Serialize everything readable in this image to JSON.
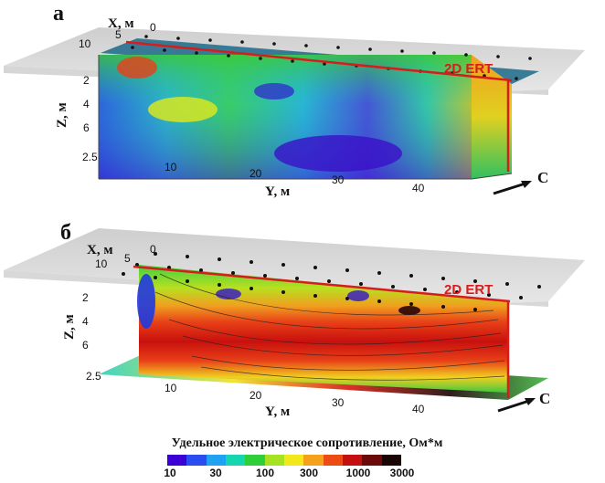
{
  "panels": [
    {
      "letter": "а",
      "x_axis_label": "X, м",
      "x_ticks": [
        "0",
        "5",
        "10"
      ],
      "z_axis_label": "Z, м",
      "z_ticks": [
        "2",
        "4",
        "6"
      ],
      "z_bottom_tick": "2.5",
      "y_axis_label": "Y, м",
      "y_ticks": [
        "10",
        "20",
        "30",
        "40"
      ],
      "profile_label": "2D ERT",
      "direction_label": "C"
    },
    {
      "letter": "б",
      "x_axis_label": "X, м",
      "x_ticks": [
        "0",
        "5",
        "10"
      ],
      "z_axis_label": "Z, м",
      "z_ticks": [
        "2",
        "4",
        "6"
      ],
      "z_bottom_tick": "2.5",
      "y_axis_label": "Y, м",
      "y_ticks": [
        "10",
        "20",
        "30",
        "40"
      ],
      "profile_label": "2D ERT",
      "direction_label": "C"
    }
  ],
  "legend": {
    "title": "Удельное электрическое сопротивление, Ом*м",
    "ticks": [
      "10",
      "30",
      "100",
      "300",
      "1000",
      "3000"
    ],
    "colors": [
      "#3a00d6",
      "#2a4cf0",
      "#1fa2f2",
      "#16d6b0",
      "#2fcf3a",
      "#a6e21f",
      "#f2e81a",
      "#f5a21a",
      "#ee4a14",
      "#c4100e",
      "#6a0a0a",
      "#1a0505"
    ]
  },
  "colors": {
    "ert_line": "#d81b1b",
    "electrode": "#111111"
  }
}
